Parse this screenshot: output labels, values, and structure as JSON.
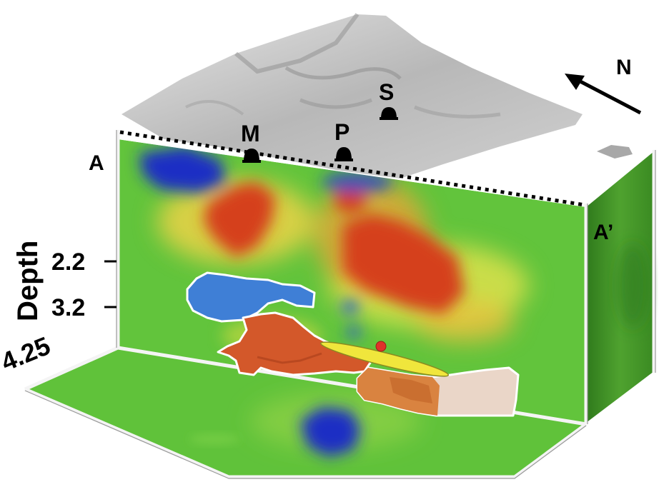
{
  "labels": {
    "section_start": "A",
    "section_end": "A’",
    "north": "N",
    "depth_axis": "Depth"
  },
  "stations": [
    {
      "name": "M"
    },
    {
      "name": "P"
    },
    {
      "name": "S"
    }
  ],
  "depth_ticks": [
    "2.2",
    "3.2",
    "4.25"
  ],
  "colors": {
    "background_green": "#5fc23a",
    "anomaly_red": "#d9451c",
    "anomaly_blue": "#1a2fc4",
    "body_orange": "#d3582a",
    "body_light_blue": "#3f7fd6",
    "body_pale": "#ead6c8",
    "plane_yellow": "#f0e63c",
    "point_red": "#e0312a",
    "side_panel_green": "#3f8f25",
    "terrain_gray": "#a9a9a9"
  }
}
